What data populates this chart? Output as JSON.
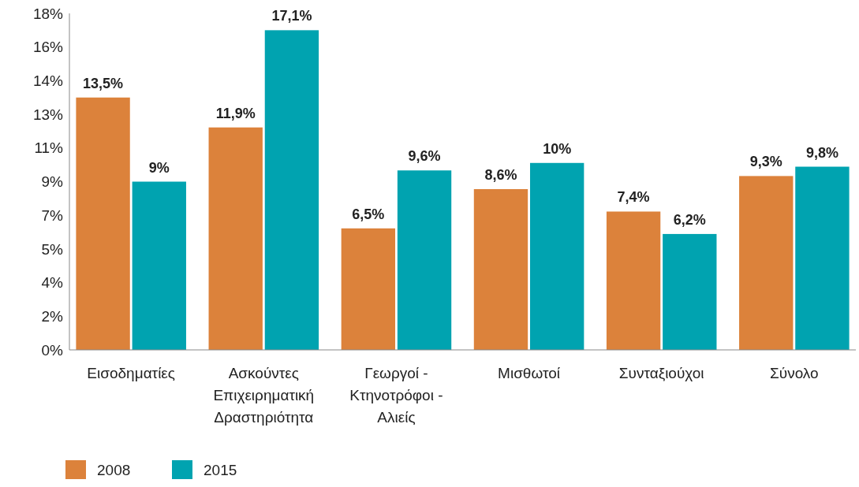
{
  "chart_data": {
    "type": "bar",
    "categories": [
      "Εισοδηματίες",
      "Ασκούντες Επιχειρηματική Δραστηριότητα",
      "Γεωργοί - Κτηνοτρόφοι - Αλιείς",
      "Μισθωτοί",
      "Συνταξιούχοι",
      "Σύνολο"
    ],
    "series": [
      {
        "name": "2008",
        "color": "#dc823b",
        "values": [
          13.5,
          11.9,
          6.5,
          8.6,
          7.4,
          9.3
        ],
        "value_labels": [
          "13,5%",
          "11,9%",
          "6,5%",
          "8,6%",
          "7,4%",
          "9,3%"
        ]
      },
      {
        "name": "2015",
        "color": "#00a3b0",
        "values": [
          9,
          17.1,
          9.6,
          10,
          6.2,
          9.8
        ],
        "value_labels": [
          "9%",
          "17,1%",
          "9,6%",
          "10%",
          "6,2%",
          "9,8%"
        ]
      }
    ],
    "ylim": [
      0,
      18
    ],
    "yticks": [
      {
        "value": 0,
        "label": "0%"
      },
      {
        "value": 1.8,
        "label": "2%"
      },
      {
        "value": 3.6,
        "label": "4%"
      },
      {
        "value": 5.4,
        "label": "5%"
      },
      {
        "value": 7.2,
        "label": "7%"
      },
      {
        "value": 9,
        "label": "9%"
      },
      {
        "value": 10.8,
        "label": "11%"
      },
      {
        "value": 12.6,
        "label": "13%"
      },
      {
        "value": 14.4,
        "label": "14%"
      },
      {
        "value": 16.2,
        "label": "16%"
      },
      {
        "value": 18,
        "label": "18%"
      }
    ],
    "grid": false,
    "legend": "bottom left"
  }
}
